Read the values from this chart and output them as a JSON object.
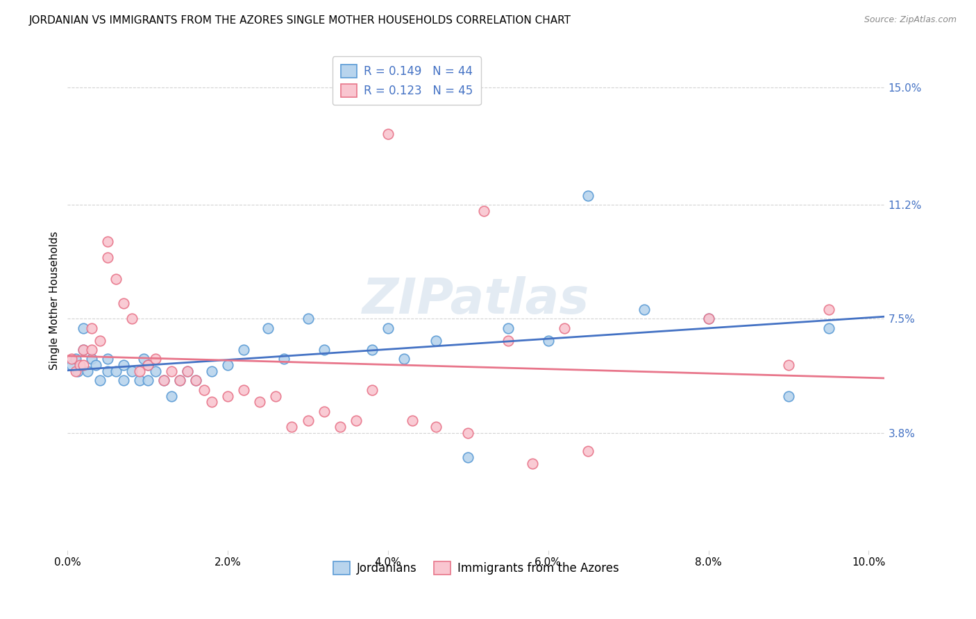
{
  "title": "JORDANIAN VS IMMIGRANTS FROM THE AZORES SINGLE MOTHER HOUSEHOLDS CORRELATION CHART",
  "source": "Source: ZipAtlas.com",
  "ylabel_label": "Single Mother Households",
  "xlabel_ticks": [
    "0.0%",
    "2.0%",
    "4.0%",
    "6.0%",
    "8.0%",
    "10.0%"
  ],
  "xlabel_vals": [
    0.0,
    0.02,
    0.04,
    0.06,
    0.08,
    0.1
  ],
  "ylabel_ticks": [
    "3.8%",
    "7.5%",
    "11.2%",
    "15.0%"
  ],
  "ylabel_vals": [
    0.038,
    0.075,
    0.112,
    0.15
  ],
  "R_jordanians": "0.149",
  "N_jordanians": "44",
  "R_azores": "0.123",
  "N_azores": "45",
  "jordanians_color_face": "#b8d4ed",
  "jordanians_color_edge": "#5b9bd5",
  "azores_color_face": "#f9c6d0",
  "azores_color_edge": "#e8758a",
  "jordanians_line_color": "#4472c4",
  "azores_line_color": "#e8758a",
  "background_color": "#ffffff",
  "xlim": [
    0.0,
    0.102
  ],
  "ylim": [
    0.0,
    0.162
  ],
  "jordanians_x": [
    0.0005,
    0.001,
    0.0013,
    0.002,
    0.002,
    0.0025,
    0.003,
    0.0035,
    0.004,
    0.005,
    0.005,
    0.006,
    0.007,
    0.007,
    0.008,
    0.009,
    0.0095,
    0.01,
    0.01,
    0.011,
    0.012,
    0.013,
    0.014,
    0.015,
    0.016,
    0.018,
    0.02,
    0.022,
    0.025,
    0.027,
    0.03,
    0.032,
    0.038,
    0.04,
    0.042,
    0.046,
    0.05,
    0.055,
    0.06,
    0.065,
    0.072,
    0.08,
    0.09,
    0.095
  ],
  "jordanians_y": [
    0.06,
    0.062,
    0.058,
    0.065,
    0.072,
    0.058,
    0.062,
    0.06,
    0.055,
    0.058,
    0.062,
    0.058,
    0.06,
    0.055,
    0.058,
    0.055,
    0.062,
    0.055,
    0.06,
    0.058,
    0.055,
    0.05,
    0.055,
    0.058,
    0.055,
    0.058,
    0.06,
    0.065,
    0.072,
    0.062,
    0.075,
    0.065,
    0.065,
    0.072,
    0.062,
    0.068,
    0.03,
    0.072,
    0.068,
    0.115,
    0.078,
    0.075,
    0.05,
    0.072
  ],
  "azores_x": [
    0.0005,
    0.001,
    0.0015,
    0.002,
    0.002,
    0.003,
    0.003,
    0.004,
    0.005,
    0.005,
    0.006,
    0.007,
    0.008,
    0.009,
    0.01,
    0.011,
    0.012,
    0.013,
    0.014,
    0.015,
    0.016,
    0.017,
    0.018,
    0.02,
    0.022,
    0.024,
    0.026,
    0.028,
    0.03,
    0.032,
    0.034,
    0.036,
    0.038,
    0.04,
    0.043,
    0.046,
    0.05,
    0.052,
    0.055,
    0.058,
    0.062,
    0.065,
    0.08,
    0.09,
    0.095
  ],
  "azores_y": [
    0.062,
    0.058,
    0.06,
    0.06,
    0.065,
    0.065,
    0.072,
    0.068,
    0.1,
    0.095,
    0.088,
    0.08,
    0.075,
    0.058,
    0.06,
    0.062,
    0.055,
    0.058,
    0.055,
    0.058,
    0.055,
    0.052,
    0.048,
    0.05,
    0.052,
    0.048,
    0.05,
    0.04,
    0.042,
    0.045,
    0.04,
    0.042,
    0.052,
    0.135,
    0.042,
    0.04,
    0.038,
    0.11,
    0.068,
    0.028,
    0.072,
    0.032,
    0.075,
    0.06,
    0.078
  ]
}
